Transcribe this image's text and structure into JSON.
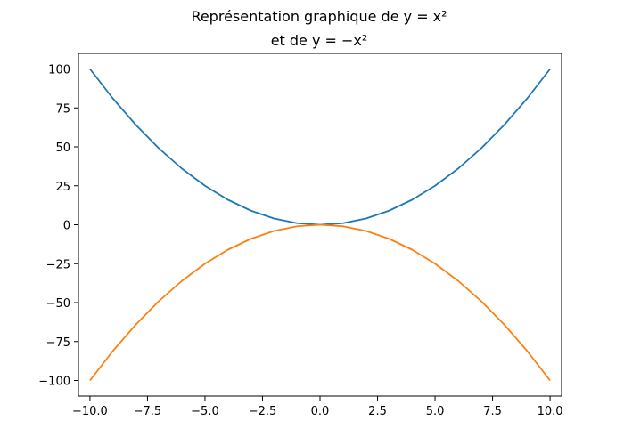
{
  "chart_data": {
    "type": "line",
    "title_line1": "Représentation graphique de y = x²",
    "title_line2": "et de y = −x²",
    "xlabel": "",
    "ylabel": "",
    "xlim": [
      -10.5,
      10.5
    ],
    "ylim": [
      -110,
      110
    ],
    "x_ticks": [
      -10.0,
      -7.5,
      -5.0,
      -2.5,
      0.0,
      2.5,
      5.0,
      7.5,
      10.0
    ],
    "x_tick_labels": [
      "−10.0",
      "−7.5",
      "−5.0",
      "−2.5",
      "0.0",
      "2.5",
      "5.0",
      "7.5",
      "10.0"
    ],
    "y_ticks": [
      100,
      75,
      50,
      25,
      0,
      -25,
      -50,
      -75,
      -100
    ],
    "y_tick_labels": [
      "100",
      "75",
      "50",
      "25",
      "0",
      "−25",
      "−50",
      "−75",
      "−100"
    ],
    "grid": false,
    "x": [
      -10,
      -9,
      -8,
      -7,
      -6,
      -5,
      -4,
      -3,
      -2,
      -1,
      0,
      1,
      2,
      3,
      4,
      5,
      6,
      7,
      8,
      9,
      10
    ],
    "series": [
      {
        "color": "#1f77b4",
        "values": [
          100,
          81,
          64,
          49,
          36,
          25,
          16,
          9,
          4,
          1,
          0,
          1,
          4,
          9,
          16,
          25,
          36,
          49,
          64,
          81,
          100
        ]
      },
      {
        "color": "#ff7f0e",
        "values": [
          -100,
          -81,
          -64,
          -49,
          -36,
          -25,
          -16,
          -9,
          -4,
          -1,
          0,
          -1,
          -4,
          -9,
          -16,
          -25,
          -36,
          -49,
          -64,
          -81,
          -100
        ]
      }
    ]
  }
}
